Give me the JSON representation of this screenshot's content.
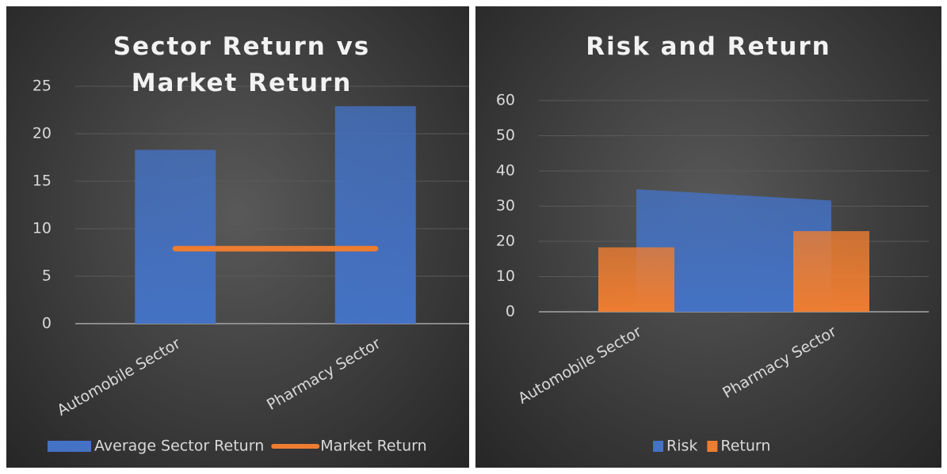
{
  "chart_data": [
    {
      "type": "combo",
      "title": "Sector Return vs Market Return",
      "categories": [
        "Automobile Sector",
        "Pharmacy Sector"
      ],
      "series": [
        {
          "name": "Average Sector Return",
          "type": "bar",
          "color": "#4472c4",
          "values": [
            18.3,
            22.9
          ]
        },
        {
          "name": "Market Return",
          "type": "line",
          "color": "#ed7d31",
          "values": [
            7.9,
            7.9
          ]
        }
      ],
      "ylim": [
        0,
        25
      ],
      "yticks": [
        0,
        5,
        10,
        15,
        20,
        25
      ],
      "grid": true,
      "legend": "bottom"
    },
    {
      "type": "combo",
      "title": "Risk and Return",
      "categories": [
        "Automobile Sector",
        "Pharmacy Sector"
      ],
      "series": [
        {
          "name": "Risk",
          "type": "area",
          "color": "#4472c4",
          "values": [
            34.8,
            31.6
          ]
        },
        {
          "name": "Return",
          "type": "bar",
          "color": "#ed7d31",
          "values": [
            18.3,
            22.9
          ]
        }
      ],
      "ylim": [
        0,
        60
      ],
      "yticks": [
        0,
        10,
        20,
        30,
        40,
        50,
        60
      ],
      "grid": true,
      "legend": "bottom"
    }
  ]
}
